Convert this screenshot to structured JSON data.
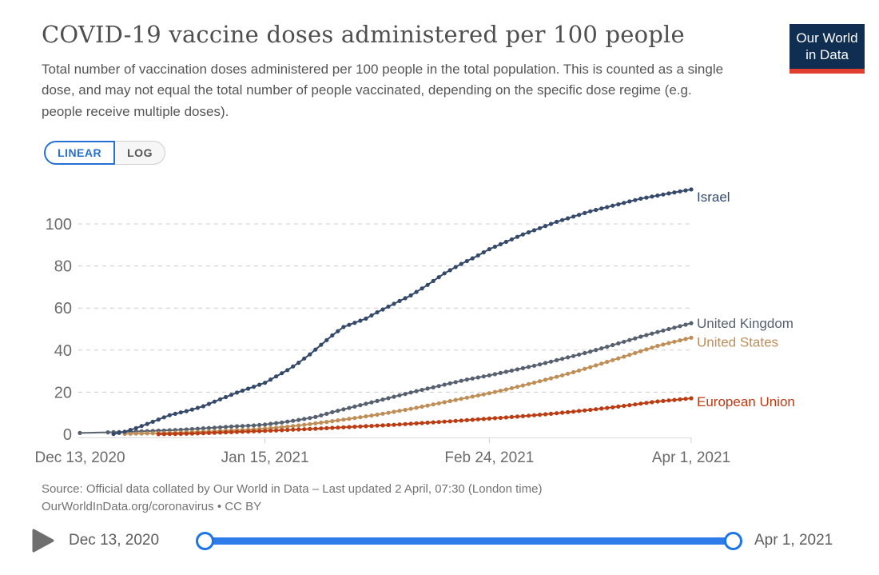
{
  "header": {
    "title": "COVID-19 vaccine doses administered per 100 people",
    "subtitle": "Total number of vaccination doses administered per 100 people in the total population. This is counted as a single dose, and may not equal the total number of people vaccinated, depending on the specific dose regime (e.g. people receive multiple doses).",
    "logo": {
      "line1": "Our World",
      "line2": "in Data"
    }
  },
  "controls": {
    "scale_options": [
      {
        "label": "LINEAR",
        "active": true
      },
      {
        "label": "LOG",
        "active": false
      }
    ]
  },
  "chart_data": {
    "type": "line",
    "title": "COVID-19 vaccine doses administered per 100 people",
    "x_unit": "days since Dec 13, 2020",
    "xlim": [
      0,
      109
    ],
    "ylim": [
      0,
      118
    ],
    "grid": "dashed-horizontal",
    "legend_position": "labels-right-of-line-ends",
    "y_ticks": [
      0,
      20,
      40,
      60,
      80,
      100
    ],
    "x_ticks": [
      {
        "pos": 0,
        "label": "Dec 13, 2020"
      },
      {
        "pos": 33,
        "label": "Jan 15, 2021"
      },
      {
        "pos": 73,
        "label": "Feb 24, 2021"
      },
      {
        "pos": 109,
        "label": "Apr 1, 2021"
      }
    ],
    "series": [
      {
        "name": "United Kingdom",
        "color": "#57606f",
        "marker_from": 5,
        "label_dy": 0,
        "points": [
          [
            0,
            0.6
          ],
          [
            5,
            0.9
          ],
          [
            9,
            1.2
          ],
          [
            13,
            1.6
          ],
          [
            16,
            1.9
          ],
          [
            19,
            2.3
          ],
          [
            22,
            2.8
          ],
          [
            25,
            3.3
          ],
          [
            28,
            3.8
          ],
          [
            31,
            4.2
          ],
          [
            33,
            4.6
          ],
          [
            36,
            5.6
          ],
          [
            39,
            6.8
          ],
          [
            42,
            8.2
          ],
          [
            45,
            10.5
          ],
          [
            48,
            12.5
          ],
          [
            51,
            14.5
          ],
          [
            54,
            16.5
          ],
          [
            57,
            18.5
          ],
          [
            60,
            20.5
          ],
          [
            63,
            22.3
          ],
          [
            66,
            24.2
          ],
          [
            69,
            26.0
          ],
          [
            73,
            28.0
          ],
          [
            76,
            29.7
          ],
          [
            79,
            31.4
          ],
          [
            82,
            33.2
          ],
          [
            85,
            35.2
          ],
          [
            88,
            37.2
          ],
          [
            91,
            39.3
          ],
          [
            94,
            41.6
          ],
          [
            97,
            44.0
          ],
          [
            100,
            46.4
          ],
          [
            103,
            48.6
          ],
          [
            106,
            50.7
          ],
          [
            109,
            52.8
          ]
        ]
      },
      {
        "name": "United States",
        "color": "#bf8e57",
        "marker_from": 8,
        "label_dy": 5,
        "points": [
          [
            8,
            0.2
          ],
          [
            12,
            0.4
          ],
          [
            16,
            0.7
          ],
          [
            19,
            0.9
          ],
          [
            23,
            1.3
          ],
          [
            27,
            1.8
          ],
          [
            31,
            2.3
          ],
          [
            34,
            2.9
          ],
          [
            37,
            3.6
          ],
          [
            40,
            4.5
          ],
          [
            43,
            5.5
          ],
          [
            46,
            6.6
          ],
          [
            49,
            7.7
          ],
          [
            52,
            8.9
          ],
          [
            55,
            10.2
          ],
          [
            58,
            11.6
          ],
          [
            61,
            13.1
          ],
          [
            64,
            14.7
          ],
          [
            67,
            16.3
          ],
          [
            70,
            17.9
          ],
          [
            73,
            19.5
          ],
          [
            76,
            21.3
          ],
          [
            79,
            23.2
          ],
          [
            82,
            25.2
          ],
          [
            85,
            27.3
          ],
          [
            88,
            29.5
          ],
          [
            91,
            31.9
          ],
          [
            94,
            34.4
          ],
          [
            97,
            36.9
          ],
          [
            100,
            39.5
          ],
          [
            103,
            42.0
          ],
          [
            106,
            44.0
          ],
          [
            109,
            45.9
          ]
        ]
      },
      {
        "name": "European Union",
        "color": "#bb3b12",
        "marker_from": 14,
        "label_dy": 4,
        "points": [
          [
            14,
            0.05
          ],
          [
            17,
            0.15
          ],
          [
            20,
            0.3
          ],
          [
            23,
            0.6
          ],
          [
            26,
            0.9
          ],
          [
            29,
            1.2
          ],
          [
            32,
            1.5
          ],
          [
            35,
            1.8
          ],
          [
            38,
            2.2
          ],
          [
            41,
            2.5
          ],
          [
            44,
            2.9
          ],
          [
            47,
            3.3
          ],
          [
            50,
            3.7
          ],
          [
            53,
            4.1
          ],
          [
            56,
            4.5
          ],
          [
            59,
            5.0
          ],
          [
            62,
            5.5
          ],
          [
            65,
            6.0
          ],
          [
            68,
            6.5
          ],
          [
            71,
            7.1
          ],
          [
            75,
            7.8
          ],
          [
            79,
            8.6
          ],
          [
            83,
            9.5
          ],
          [
            87,
            10.5
          ],
          [
            91,
            11.6
          ],
          [
            95,
            12.8
          ],
          [
            99,
            14.2
          ],
          [
            103,
            15.6
          ],
          [
            106,
            16.3
          ],
          [
            109,
            17.1
          ]
        ]
      },
      {
        "name": "Israel",
        "color": "#35496b",
        "marker_from": 6,
        "label_dy": 9,
        "points": [
          [
            6,
            0.1
          ],
          [
            8,
            1.2
          ],
          [
            10,
            2.9
          ],
          [
            12,
            4.9
          ],
          [
            14,
            7.0
          ],
          [
            16,
            9.1
          ],
          [
            19,
            11.0
          ],
          [
            22,
            13.3
          ],
          [
            25,
            16.6
          ],
          [
            28,
            19.8
          ],
          [
            31,
            22.6
          ],
          [
            33,
            24.5
          ],
          [
            35,
            27.5
          ],
          [
            37,
            30.5
          ],
          [
            39,
            34.0
          ],
          [
            41,
            38.0
          ],
          [
            43,
            42.5
          ],
          [
            45,
            47.0
          ],
          [
            47,
            51.0
          ],
          [
            49,
            53.0
          ],
          [
            51,
            55.0
          ],
          [
            53,
            58.0
          ],
          [
            56,
            62.0
          ],
          [
            59,
            66.0
          ],
          [
            62,
            71.0
          ],
          [
            65,
            76.5
          ],
          [
            68,
            81.0
          ],
          [
            71,
            85.0
          ],
          [
            73,
            88.0
          ],
          [
            76,
            91.5
          ],
          [
            79,
            95.0
          ],
          [
            82,
            98.0
          ],
          [
            85,
            101.0
          ],
          [
            88,
            103.5
          ],
          [
            91,
            106.0
          ],
          [
            94,
            108.0
          ],
          [
            97,
            110.0
          ],
          [
            100,
            112.0
          ],
          [
            103,
            113.5
          ],
          [
            106,
            115.0
          ],
          [
            109,
            116.4
          ]
        ]
      }
    ]
  },
  "footer": {
    "source_line1": "Source: Official data collated by Our World in Data – Last updated 2 April, 07:30 (London time)",
    "source_line2": "OurWorldInData.org/coronavirus • CC BY",
    "timeline": {
      "start": "Dec 13, 2020",
      "end": "Apr 1, 2021"
    }
  },
  "colors": {
    "ui_blue": "#2470d3",
    "slider_blue": "#2d7ce9",
    "logo_navy": "#0f2e52",
    "logo_red": "#e03e2f",
    "grid_gray": "#cccccc",
    "axis_text": "#6b6b6b"
  }
}
